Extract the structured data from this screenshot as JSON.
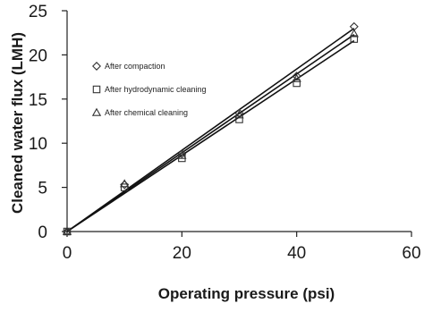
{
  "chart_data": {
    "type": "scatter",
    "title": "",
    "xlabel": "Operating pressure (psi)",
    "ylabel": "Cleaned water flux (LMH)",
    "xlim": [
      0,
      60
    ],
    "ylim": [
      0,
      25
    ],
    "xticks": [
      "0",
      "20",
      "40",
      "60"
    ],
    "yticks": [
      "0",
      "5",
      "10",
      "15",
      "20",
      "25"
    ],
    "grid": false,
    "legend_position": "top-left",
    "series": [
      {
        "name": "After compaction",
        "marker": "diamond",
        "x": [
          0,
          10,
          20,
          30,
          40,
          50
        ],
        "y": [
          0,
          5.3,
          8.8,
          13.4,
          17.6,
          23.2
        ]
      },
      {
        "name": "After hydrodynamic cleaning",
        "marker": "square",
        "x": [
          0,
          10,
          20,
          30,
          40,
          50
        ],
        "y": [
          0,
          5.0,
          8.3,
          12.7,
          16.8,
          21.8
        ]
      },
      {
        "name": "After chemical cleaning",
        "marker": "triangle",
        "x": [
          0,
          10,
          20,
          30,
          40,
          50
        ],
        "y": [
          0,
          5.4,
          8.6,
          13.2,
          17.3,
          22.4
        ]
      }
    ],
    "trendlines": [
      {
        "series": "After compaction",
        "x": [
          0,
          50
        ],
        "y": [
          0,
          23.0
        ]
      },
      {
        "series": "After hydrodynamic cleaning",
        "x": [
          0,
          50
        ],
        "y": [
          0,
          21.6
        ]
      },
      {
        "series": "After chemical cleaning",
        "x": [
          0,
          50
        ],
        "y": [
          0,
          22.3
        ]
      }
    ],
    "colors": {
      "marker": "#333333",
      "line": "#111111",
      "axis": "#222222"
    }
  }
}
